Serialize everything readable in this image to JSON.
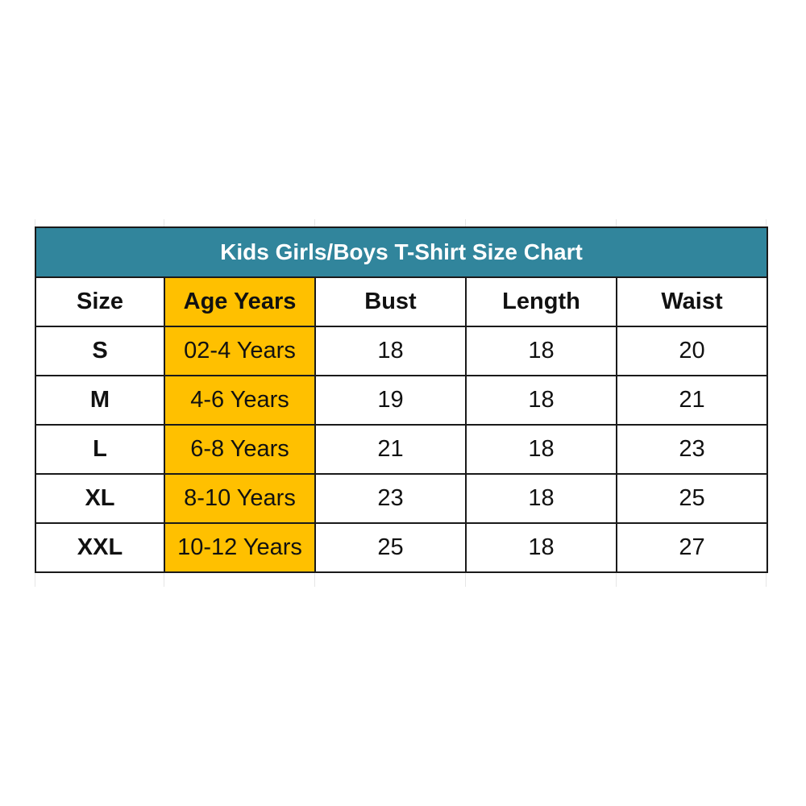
{
  "title": "Kids Girls/Boys T-Shirt Size Chart",
  "colors": {
    "header_bg": "#31859C",
    "age_column_bg": "#FFC000"
  },
  "columns": [
    "Size",
    "Age Years",
    "Bust",
    "Length",
    "Waist"
  ],
  "rows": [
    [
      "S",
      "02-4 Years",
      "18",
      "18",
      "20"
    ],
    [
      "M",
      "4-6 Years",
      "19",
      "18",
      "21"
    ],
    [
      "L",
      "6-8 Years",
      "21",
      "18",
      "23"
    ],
    [
      "XL",
      "8-10 Years",
      "23",
      "18",
      "25"
    ],
    [
      "XXL",
      "10-12 Years",
      "25",
      "18",
      "27"
    ]
  ]
}
